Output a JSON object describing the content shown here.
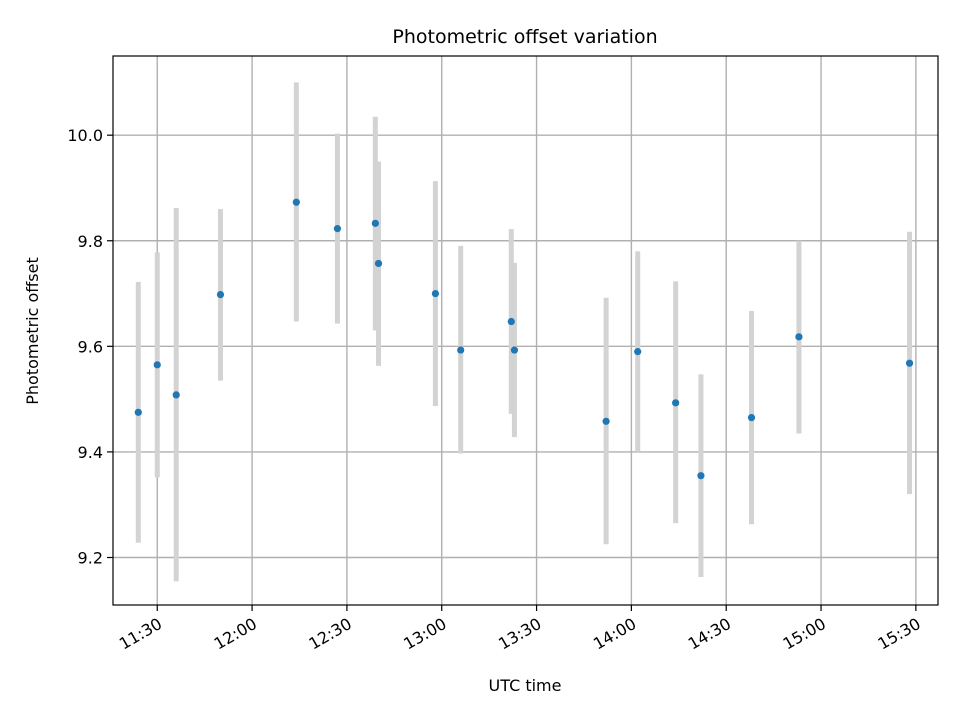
{
  "chart_data": {
    "type": "scatter",
    "title": "Photometric offset variation",
    "xlabel": "UTC time",
    "ylabel": "Photometric offset",
    "x_ticks": [
      "11:30",
      "12:00",
      "12:30",
      "13:00",
      "13:30",
      "14:00",
      "14:30",
      "15:00",
      "15:30"
    ],
    "y_ticks": [
      9.2,
      9.4,
      9.6,
      9.8,
      10.0
    ],
    "ylim": [
      9.11,
      10.15
    ],
    "xlim": [
      "11:16",
      "15:37"
    ],
    "grid": true,
    "colors": {
      "points": "#1f77b4",
      "error_bars": "#d3d3d3"
    },
    "points": [
      {
        "x": "11:24",
        "y": 9.475,
        "low": 9.228,
        "high": 9.722
      },
      {
        "x": "11:30",
        "y": 9.565,
        "low": 9.352,
        "high": 9.778
      },
      {
        "x": "11:36",
        "y": 9.508,
        "low": 9.155,
        "high": 9.862
      },
      {
        "x": "11:50",
        "y": 9.698,
        "low": 9.535,
        "high": 9.86
      },
      {
        "x": "12:14",
        "y": 9.873,
        "low": 9.647,
        "high": 10.1
      },
      {
        "x": "12:27",
        "y": 9.823,
        "low": 9.643,
        "high": 10.003
      },
      {
        "x": "12:39",
        "y": 9.833,
        "low": 9.63,
        "high": 10.035
      },
      {
        "x": "12:40",
        "y": 9.757,
        "low": 9.563,
        "high": 9.95
      },
      {
        "x": "12:58",
        "y": 9.7,
        "low": 9.487,
        "high": 9.913
      },
      {
        "x": "13:06",
        "y": 9.593,
        "low": 9.397,
        "high": 9.79
      },
      {
        "x": "13:22",
        "y": 9.647,
        "low": 9.472,
        "high": 9.822
      },
      {
        "x": "13:23",
        "y": 9.593,
        "low": 9.428,
        "high": 9.758
      },
      {
        "x": "13:52",
        "y": 9.458,
        "low": 9.225,
        "high": 9.692
      },
      {
        "x": "14:02",
        "y": 9.59,
        "low": 9.4,
        "high": 9.78
      },
      {
        "x": "14:14",
        "y": 9.493,
        "low": 9.265,
        "high": 9.723
      },
      {
        "x": "14:22",
        "y": 9.355,
        "low": 9.163,
        "high": 9.547
      },
      {
        "x": "14:38",
        "y": 9.465,
        "low": 9.263,
        "high": 9.667
      },
      {
        "x": "14:53",
        "y": 9.618,
        "low": 9.435,
        "high": 9.8
      },
      {
        "x": "15:28",
        "y": 9.568,
        "low": 9.32,
        "high": 9.817
      }
    ]
  }
}
